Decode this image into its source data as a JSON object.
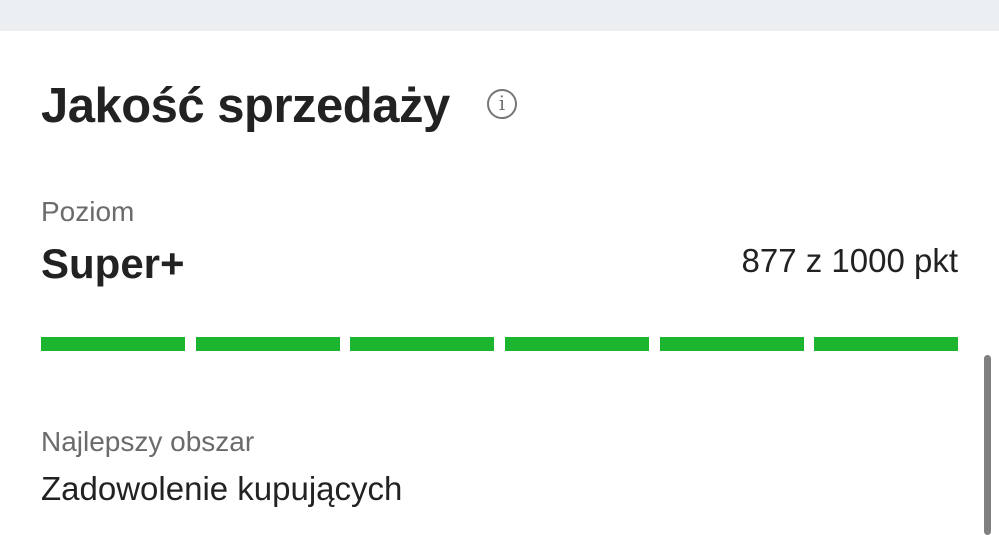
{
  "header": {
    "title": "Jakość sprzedaży",
    "info_icon": "info-circle-icon"
  },
  "level": {
    "label": "Poziom",
    "value": "Super+",
    "points_text": "877 z 1000 pkt",
    "score": 877,
    "max": 1000,
    "segments_filled": 6,
    "segments_total": 6,
    "bar_color": "#1db42f"
  },
  "best_area": {
    "label": "Najlepszy obszar",
    "value": "Zadowolenie kupujących"
  }
}
